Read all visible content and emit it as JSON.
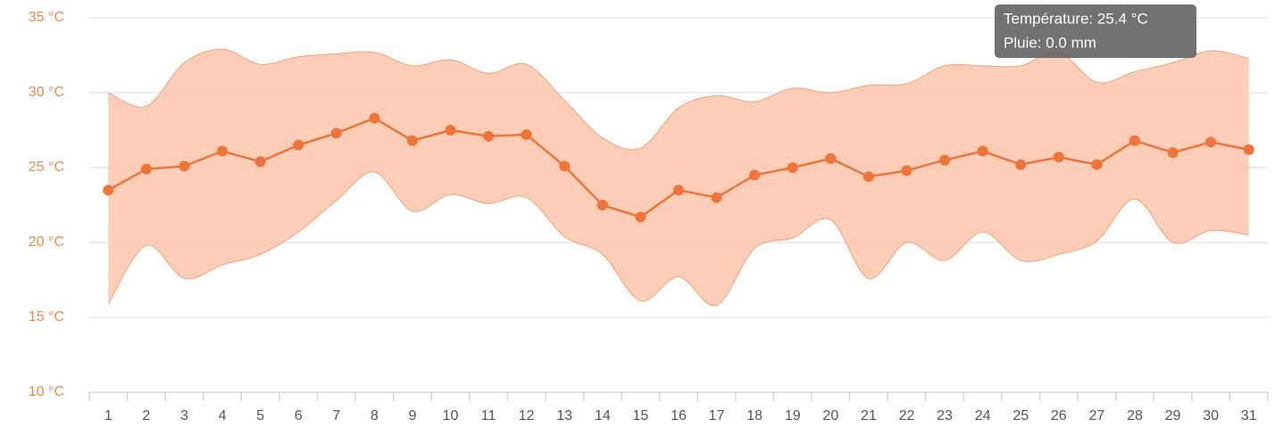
{
  "chart_data": {
    "type": "arearange-line",
    "categories": [
      "1",
      "2",
      "3",
      "4",
      "5",
      "6",
      "7",
      "8",
      "9",
      "10",
      "11",
      "12",
      "13",
      "14",
      "15",
      "16",
      "17",
      "18",
      "19",
      "20",
      "21",
      "22",
      "23",
      "24",
      "25",
      "26",
      "27",
      "28",
      "29",
      "30",
      "31"
    ],
    "values": [
      23.5,
      24.9,
      25.1,
      26.1,
      25.4,
      26.5,
      27.3,
      28.3,
      26.8,
      27.5,
      27.1,
      27.2,
      25.1,
      22.5,
      21.7,
      23.5,
      23.0,
      24.5,
      25.0,
      25.6,
      24.4,
      24.8,
      25.5,
      26.1,
      25.2,
      25.7,
      25.2,
      26.8,
      26.0,
      26.7,
      26.2
    ],
    "high": [
      30.0,
      29.1,
      32.0,
      32.9,
      31.9,
      32.4,
      32.6,
      32.7,
      31.8,
      32.2,
      31.3,
      31.9,
      29.5,
      27.0,
      26.3,
      29.0,
      29.8,
      29.4,
      30.3,
      30.0,
      30.5,
      30.6,
      31.8,
      31.8,
      31.8,
      32.7,
      30.7,
      31.4,
      32.0,
      32.8,
      32.3
    ],
    "low": [
      15.9,
      19.8,
      17.6,
      18.5,
      19.2,
      20.7,
      22.8,
      24.7,
      22.1,
      23.2,
      22.6,
      23.0,
      20.4,
      19.2,
      16.1,
      17.7,
      15.8,
      19.6,
      20.3,
      21.5,
      17.6,
      20.0,
      18.8,
      20.7,
      18.8,
      19.2,
      20.1,
      22.9,
      20.0,
      20.8,
      20.5
    ],
    "color": "#f0743a",
    "range_color": "#fbc6ac",
    "ylim": [
      10,
      35
    ],
    "yticks": [
      {
        "value": 10,
        "label": "10 °C"
      },
      {
        "value": 15,
        "label": "15 °C"
      },
      {
        "value": 20,
        "label": "20 °C"
      },
      {
        "value": 25,
        "label": "25 °C"
      },
      {
        "value": 30,
        "label": "30 °C"
      },
      {
        "value": 35,
        "label": "35 °C"
      }
    ],
    "grid": true,
    "tooltip": [
      "Température: 25.4 °C",
      "Pluie: 0.0 mm"
    ]
  }
}
